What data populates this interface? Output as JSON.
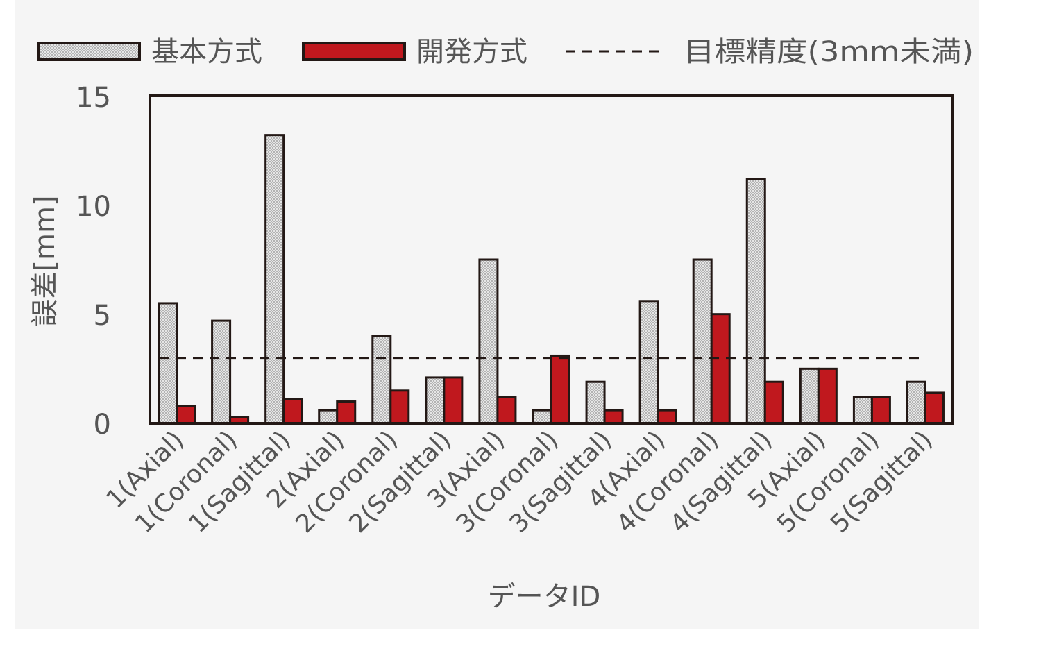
{
  "chart_data": {
    "type": "bar",
    "categories": [
      "1(Axial)",
      "1(Coronal)",
      "1(Sagittal)",
      "2(Axial)",
      "2(Coronal)",
      "2(Sagittal)",
      "3(Axial)",
      "3(Coronal)",
      "3(Sagittal)",
      "4(Axial)",
      "4(Coronal)",
      "4(Sagittal)",
      "5(Axial)",
      "5(Coronal)",
      "5(Sagittal)"
    ],
    "series": [
      {
        "name": "基本方式",
        "values": [
          5.5,
          4.7,
          13.2,
          0.6,
          4.0,
          2.1,
          7.5,
          0.6,
          1.9,
          5.6,
          7.5,
          11.2,
          2.5,
          1.2,
          1.9
        ],
        "color": "#d9d9d9",
        "pattern": "checker"
      },
      {
        "name": "開発方式",
        "values": [
          0.8,
          0.3,
          1.1,
          1.0,
          1.5,
          2.1,
          1.2,
          3.1,
          0.6,
          0.6,
          5.0,
          1.9,
          2.5,
          1.2,
          1.4
        ],
        "color": "#c0181e"
      }
    ],
    "reference_line": {
      "name": "目標精度(3mm未満)",
      "value": 3,
      "style": "dashed"
    },
    "title": "",
    "xlabel": "データID",
    "ylabel": "誤差[mm]",
    "ylim": [
      0,
      15
    ],
    "yticks": [
      "0",
      "5",
      "10",
      "15"
    ],
    "legend_position": "top",
    "grid": false
  }
}
